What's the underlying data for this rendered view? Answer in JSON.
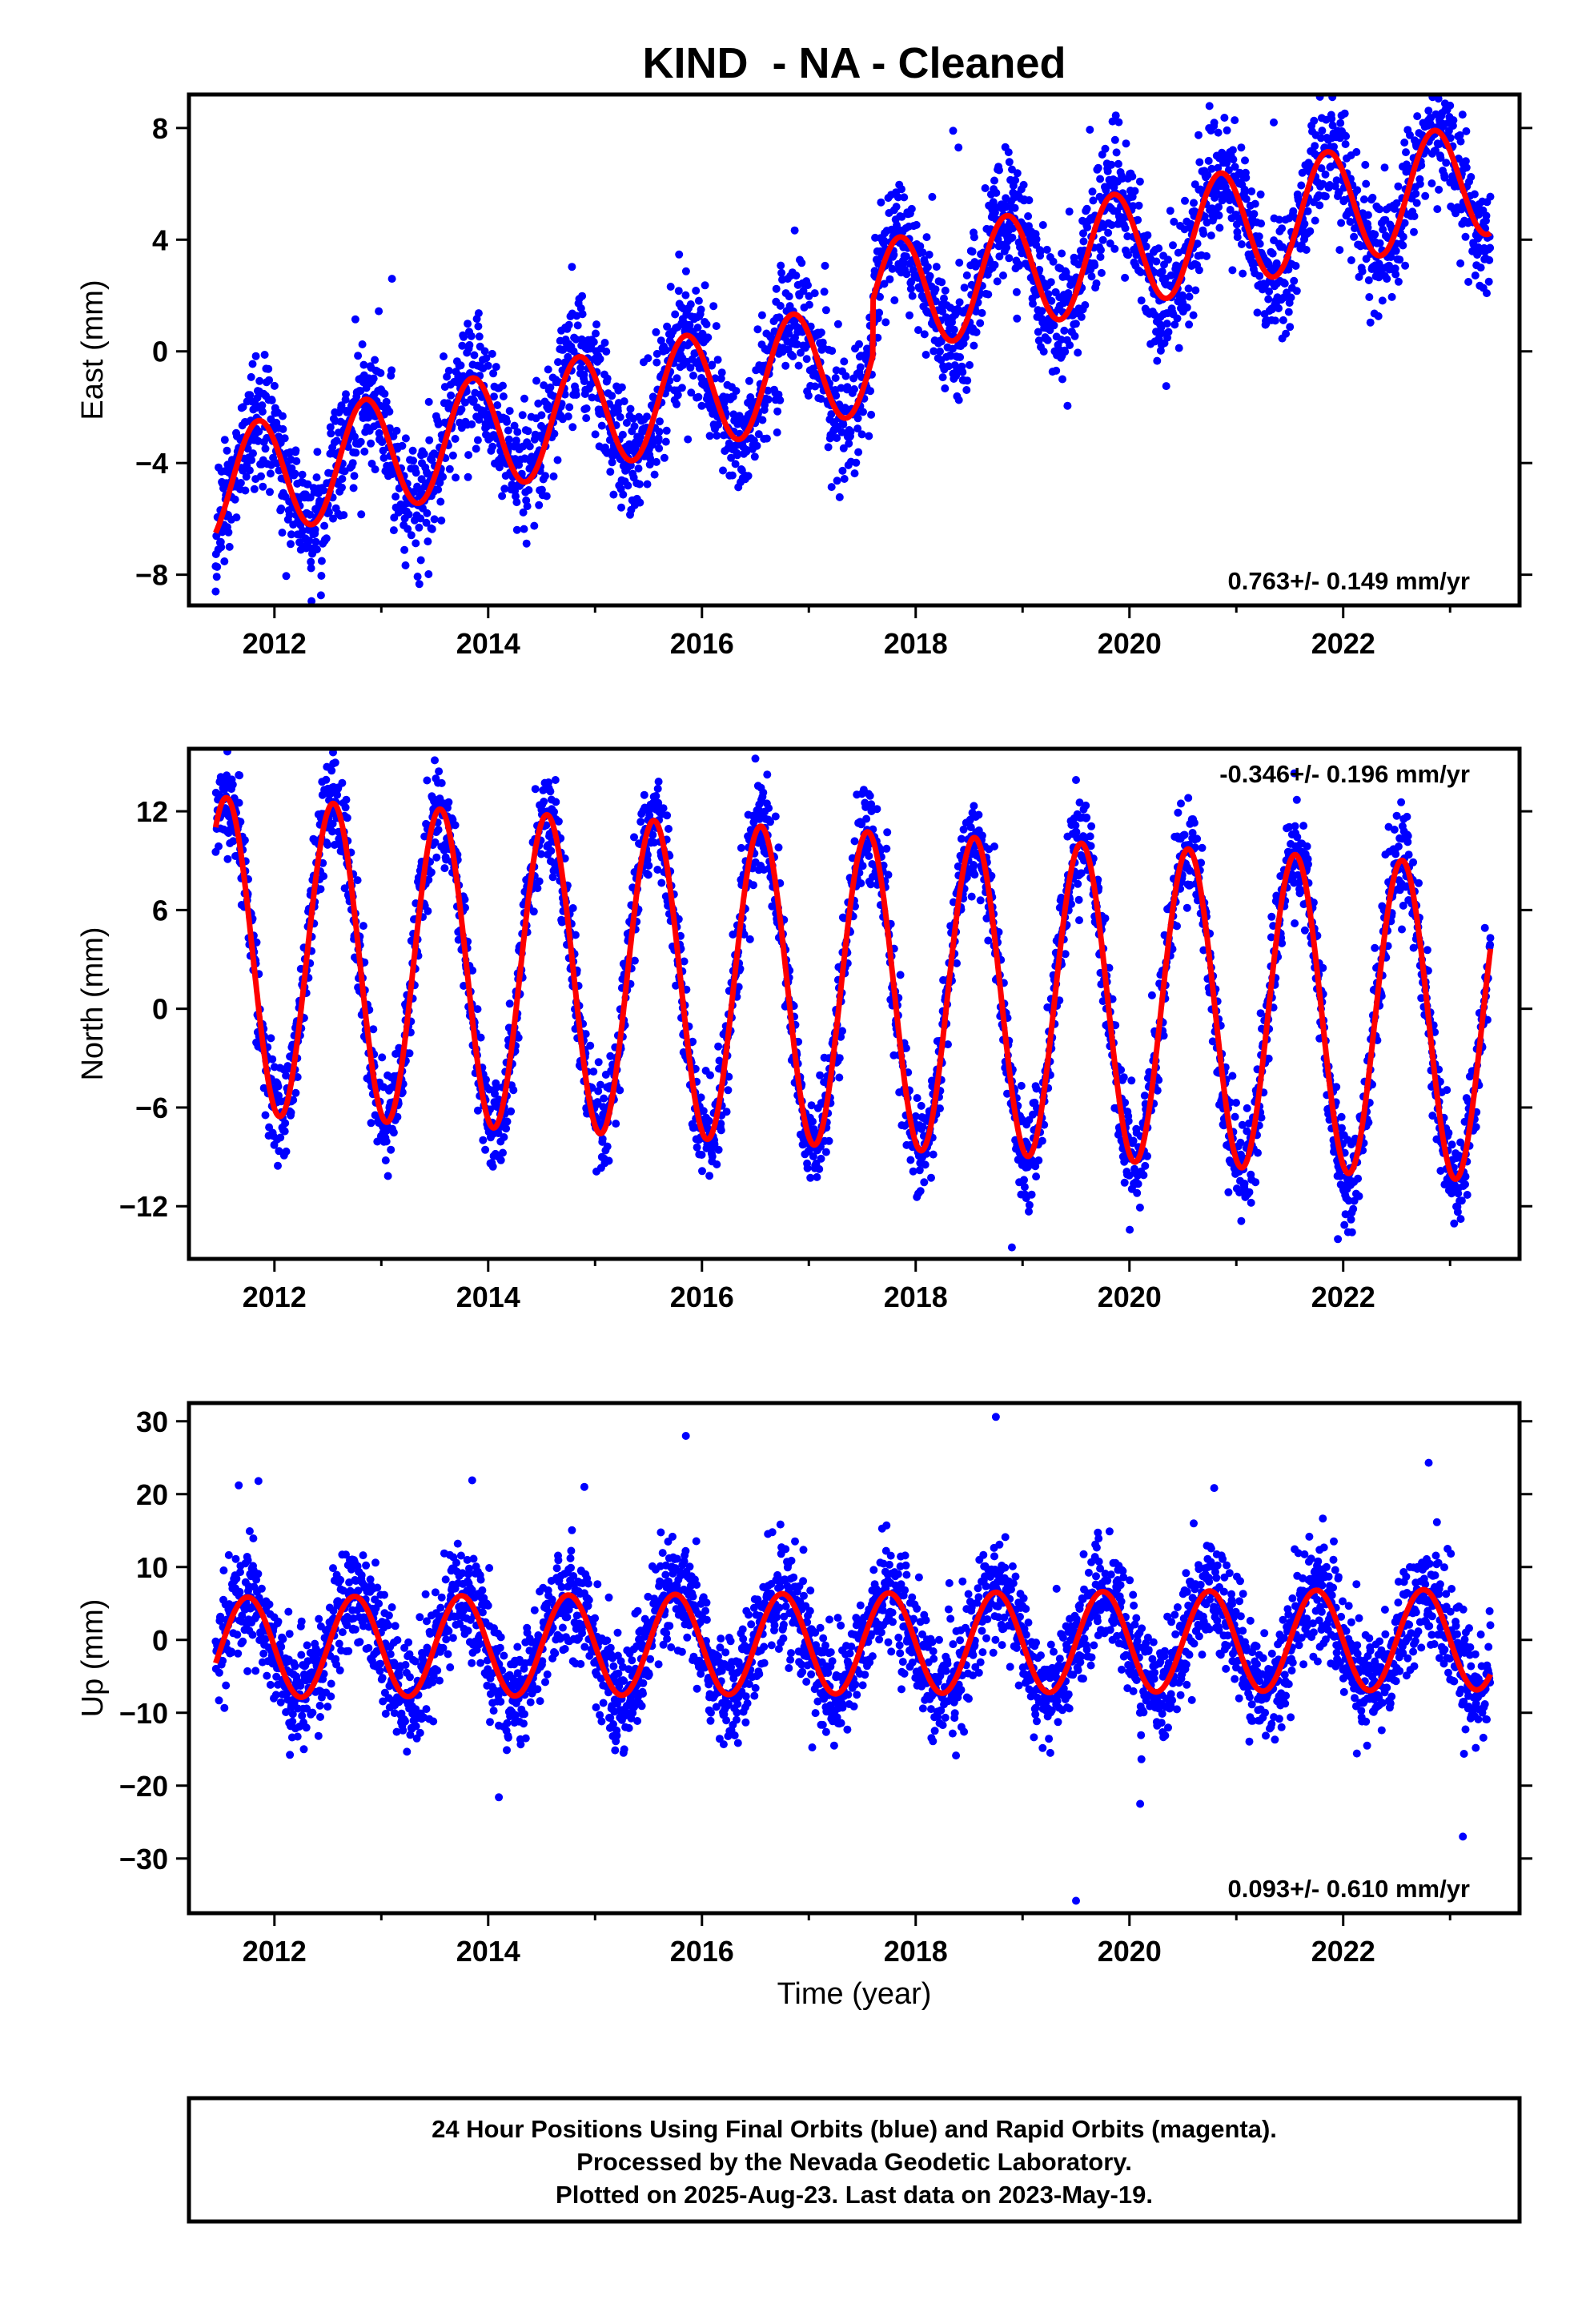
{
  "chart_data": {
    "type": "scatter",
    "title": "KIND  - NA - Cleaned",
    "xlabel": "Time (year)",
    "xlim": [
      2011.2,
      2023.65
    ],
    "xticks": [
      2012,
      2014,
      2016,
      2018,
      2020,
      2022
    ],
    "colors": {
      "points": "#0000ff",
      "fit": "#ff0000",
      "frame": "#000000"
    },
    "legend_placement": "none",
    "grid": false,
    "panels": [
      {
        "name": "east",
        "ylabel": "East (mm)",
        "ylim": [
          -9.1,
          9.2
        ],
        "yticks": [
          -8,
          -4,
          0,
          4,
          8
        ],
        "rate_label": "0.763+/- 0.149 mm/yr",
        "rate_position": "bottom-right",
        "model": {
          "start": 2011.45,
          "end": 2023.38,
          "ref": 2017.4,
          "offset": -0.3,
          "slope": 0.763,
          "amplitude": 2.05,
          "peak": 2011.85,
          "steps": [
            {
              "year": 2017.6,
              "size": 2.0
            }
          ]
        },
        "noise_sd": 1.1,
        "outliers": [
          {
            "x": 2018.35,
            "y": 7.9
          },
          {
            "x": 2018.4,
            "y": 7.3
          },
          {
            "x": 2013.1,
            "y": 2.6
          },
          {
            "x": 2023.0,
            "y": 8.8
          },
          {
            "x": 2021.35,
            "y": 8.2
          },
          {
            "x": 2011.45,
            "y": -8.6
          }
        ]
      },
      {
        "name": "north",
        "ylabel": "North (mm)",
        "ylim": [
          -15.2,
          15.8
        ],
        "yticks": [
          -12,
          -6,
          0,
          6,
          12
        ],
        "rate_label": "-0.346+/- 0.196 mm/yr",
        "rate_position": "top-right",
        "model": {
          "start": 2011.45,
          "end": 2023.38,
          "ref": 2017.4,
          "offset": 1.2,
          "slope": -0.346,
          "amplitude": 9.6,
          "peak": 2011.55,
          "steps": []
        },
        "noise_sd": 1.5,
        "outliers": [
          {
            "x": 2018.9,
            "y": -14.5
          },
          {
            "x": 2016.5,
            "y": 15.2
          },
          {
            "x": 2012.55,
            "y": 14.9
          },
          {
            "x": 2013.5,
            "y": 15.1
          },
          {
            "x": 2019.5,
            "y": 13.9
          },
          {
            "x": 2021.95,
            "y": -14.0
          }
        ]
      },
      {
        "name": "up",
        "ylabel": "Up (mm)",
        "ylim": [
          -37.5,
          32.5
        ],
        "yticks": [
          -30,
          -20,
          -10,
          0,
          10,
          20,
          30
        ],
        "rate_label": "0.093+/- 0.610 mm/yr",
        "rate_position": "bottom-right",
        "model": {
          "start": 2011.45,
          "end": 2023.38,
          "ref": 2017.4,
          "offset": -0.5,
          "slope": 0.093,
          "amplitude": 6.9,
          "peak": 2011.75,
          "steps": []
        },
        "noise_sd": 3.8,
        "outliers": [
          {
            "x": 2018.75,
            "y": 30.6
          },
          {
            "x": 2015.85,
            "y": 28.0
          },
          {
            "x": 2019.5,
            "y": -35.8
          },
          {
            "x": 2023.12,
            "y": -27.0
          },
          {
            "x": 2011.85,
            "y": 21.8
          },
          {
            "x": 2013.85,
            "y": 21.9
          },
          {
            "x": 2014.9,
            "y": 21.0
          },
          {
            "x": 2022.8,
            "y": 24.3
          },
          {
            "x": 2014.1,
            "y": -21.6
          },
          {
            "x": 2020.1,
            "y": -22.5
          }
        ]
      }
    ]
  },
  "footer": {
    "line1": "24 Hour Positions Using Final Orbits (blue) and Rapid Orbits (magenta).",
    "line2": "Processed by the Nevada Geodetic Laboratory.",
    "line3": "Plotted on 2025-Aug-23. Last data on 2023-May-19."
  }
}
